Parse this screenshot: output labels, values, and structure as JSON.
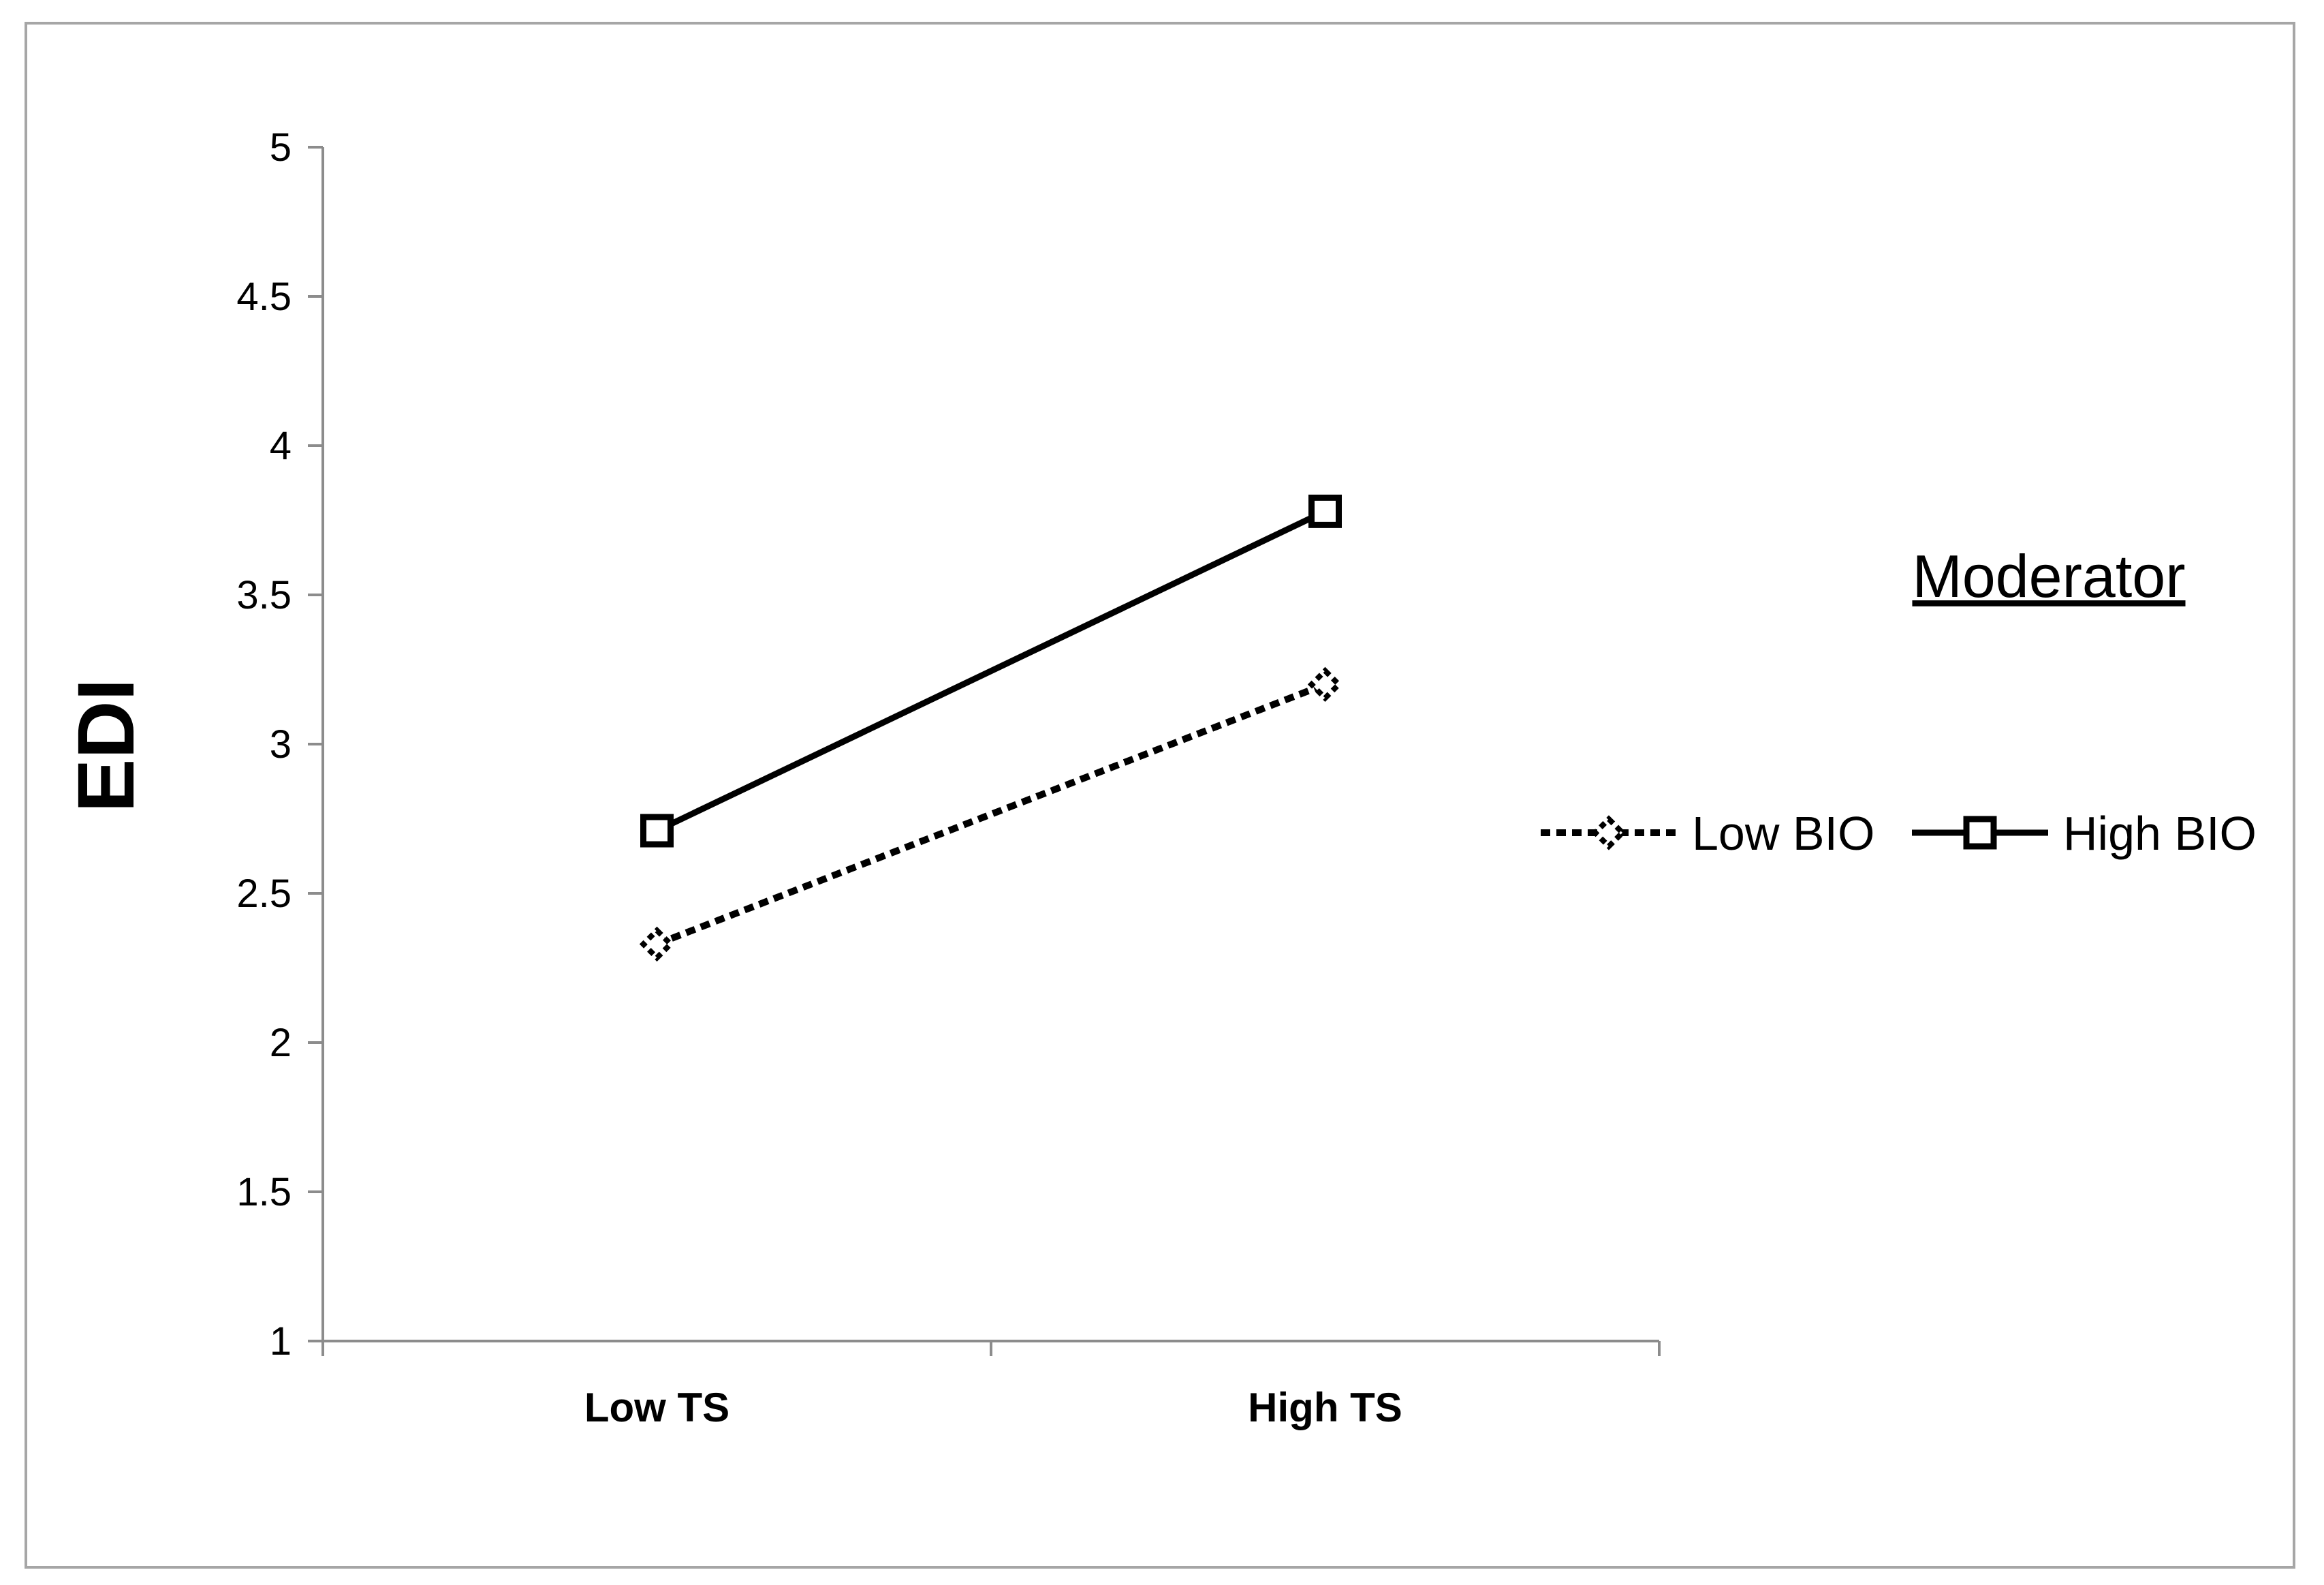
{
  "chart_data": {
    "type": "line",
    "categories": [
      "Low TS",
      "High TS"
    ],
    "series": [
      {
        "name": "Low BIO",
        "values": [
          2.33,
          3.2
        ],
        "style": "dotted",
        "marker": "diamond"
      },
      {
        "name": "High BIO",
        "values": [
          2.71,
          3.78
        ],
        "style": "solid",
        "marker": "square"
      }
    ],
    "title": "",
    "xlabel": "",
    "ylabel": "EDI",
    "ylim": [
      1,
      5
    ],
    "yticks": [
      "1",
      "1.5",
      "2",
      "2.5",
      "3",
      "3.5",
      "4",
      "4.5",
      "5"
    ],
    "grid": false,
    "legend": {
      "title": "Moderator",
      "placement": "right"
    },
    "colors": {
      "line": "#000000",
      "background": "#ffffff",
      "border": "#a6a6a6"
    }
  }
}
